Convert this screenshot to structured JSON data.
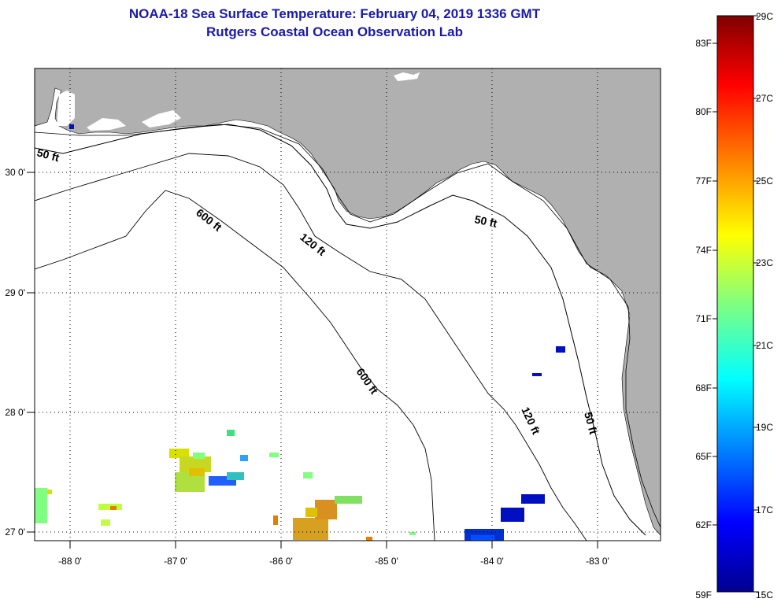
{
  "title": {
    "line1": "NOAA-18 Sea Surface Temperature:  February 04, 2019 1336 GMT",
    "line2": "Rutgers Coastal Ocean Observation Lab"
  },
  "map": {
    "lon_ticks": [
      "-88 0'",
      "-87 0'",
      "-86 0'",
      "-85 0'",
      "-84 0'",
      "-83 0'"
    ],
    "lat_ticks": [
      "30 0'",
      "29 0'",
      "28 0'",
      "27 0'"
    ],
    "contour_labels": [
      "50 ft",
      "600 ft",
      "120 ft",
      "50 ft",
      "600 ft",
      "120 ft",
      "50 ft"
    ],
    "colors": {
      "land": "#b0b0b0",
      "water": "#ffffff",
      "contour": "#000000"
    }
  },
  "colorbar": {
    "f_labels": [
      "83F",
      "80F",
      "77F",
      "74F",
      "71F",
      "68F",
      "65F",
      "62F",
      "59F"
    ],
    "c_labels": [
      "29C",
      "27C",
      "25C",
      "23C",
      "21C",
      "19C",
      "17C",
      "15C"
    ],
    "colors": [
      "#00008f",
      "#0000ff",
      "#0080ff",
      "#00ffff",
      "#80ff80",
      "#ffff00",
      "#ff8000",
      "#ff0000",
      "#800000"
    ]
  }
}
